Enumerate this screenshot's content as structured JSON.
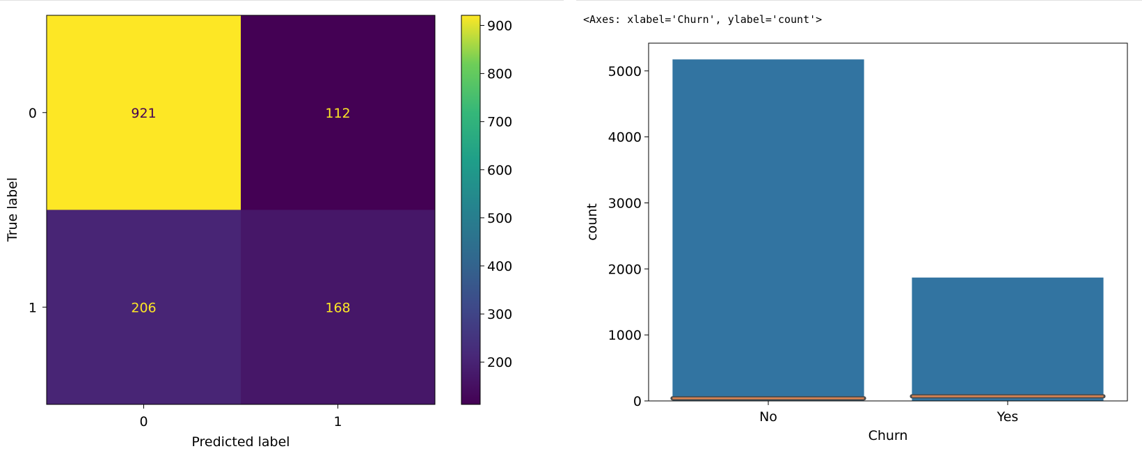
{
  "output_repr": "<Axes: xlabel='Churn', ylabel='count'>",
  "chart_data": [
    {
      "type": "heatmap",
      "xlabel": "Predicted label",
      "ylabel": "True label",
      "x_categories": [
        "0",
        "1"
      ],
      "y_categories": [
        "0",
        "1"
      ],
      "matrix": [
        [
          921,
          112
        ],
        [
          206,
          168
        ]
      ],
      "colormap": "viridis",
      "colorbar": {
        "range": [
          112,
          921
        ],
        "ticks": [
          200,
          300,
          400,
          500,
          600,
          700,
          800,
          900
        ]
      }
    },
    {
      "type": "bar",
      "xlabel": "Churn",
      "ylabel": "count",
      "categories": [
        "No",
        "Yes"
      ],
      "values": [
        5174,
        1869
      ],
      "bar_color": "#3274a1",
      "overlay_line_color": "#dd8452",
      "overlay_values": [
        {
          "center": 40,
          "band": [
            20,
            70
          ]
        },
        {
          "center": 70,
          "band": [
            55,
            90
          ]
        }
      ],
      "ylim": [
        0,
        5420
      ],
      "yticks": [
        0,
        1000,
        2000,
        3000,
        4000,
        5000
      ]
    }
  ]
}
